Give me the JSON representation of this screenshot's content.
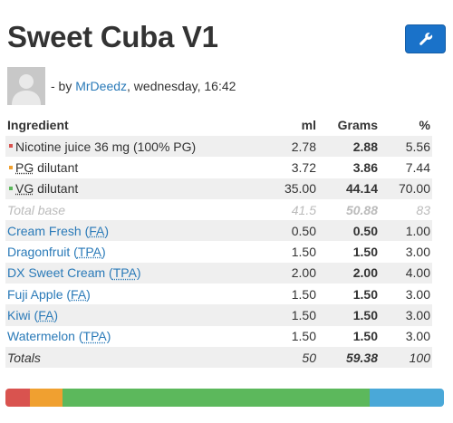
{
  "title": "Sweet Cuba V1",
  "author_line": {
    "prefix": "- by ",
    "author": "MrDeedz",
    "suffix": ", wednesday, 16:42"
  },
  "table": {
    "headers": {
      "ingredient": "Ingredient",
      "ml": "ml",
      "grams": "Grams",
      "percent": "%"
    },
    "base_rows": [
      {
        "name": "Nicotine juice 36 mg (100% PG)",
        "ml": "2.78",
        "grams": "2.88",
        "percent": "5.56"
      },
      {
        "name_abbr": "PG",
        "name_rest": " dilutant",
        "ml": "3.72",
        "grams": "3.86",
        "percent": "7.44"
      },
      {
        "name_abbr": "VG",
        "name_rest": " dilutant",
        "ml": "35.00",
        "grams": "44.14",
        "percent": "70.00"
      }
    ],
    "total_base": {
      "label": "Total base",
      "ml": "41.5",
      "grams": "50.88",
      "percent": "83"
    },
    "flavors": [
      {
        "name": "Cream Fresh",
        "maker": "FA",
        "ml": "0.50",
        "grams": "0.50",
        "percent": "1.00"
      },
      {
        "name": "Dragonfruit",
        "maker": "TPA",
        "ml": "1.50",
        "grams": "1.50",
        "percent": "3.00"
      },
      {
        "name": "DX Sweet Cream",
        "maker": "TPA",
        "ml": "2.00",
        "grams": "2.00",
        "percent": "4.00"
      },
      {
        "name": "Fuji Apple",
        "maker": "FA",
        "ml": "1.50",
        "grams": "1.50",
        "percent": "3.00"
      },
      {
        "name": "Kiwi",
        "maker": "FA",
        "ml": "1.50",
        "grams": "1.50",
        "percent": "3.00"
      },
      {
        "name": "Watermelon",
        "maker": "TPA",
        "ml": "1.50",
        "grams": "1.50",
        "percent": "3.00"
      }
    ],
    "totals": {
      "label": "Totals",
      "ml": "50",
      "grams": "59.38",
      "percent": "100"
    }
  },
  "colors": {
    "nicotine": "#d9534f",
    "pg": "#f0a030",
    "vg": "#5cb85c",
    "flavor": "#4aa8d8",
    "tool_button": "#1a72c9"
  },
  "icons": {
    "tool_button": "wrench-icon",
    "avatar": "user-placeholder"
  },
  "composition_bar": [
    {
      "name": "Nicotine",
      "percent": 5.56,
      "color": "#d9534f"
    },
    {
      "name": "PG",
      "percent": 7.44,
      "color": "#f0a030"
    },
    {
      "name": "VG",
      "percent": 70,
      "color": "#5cb85c"
    },
    {
      "name": "Flavor",
      "percent": 17,
      "color": "#4aa8d8"
    }
  ]
}
